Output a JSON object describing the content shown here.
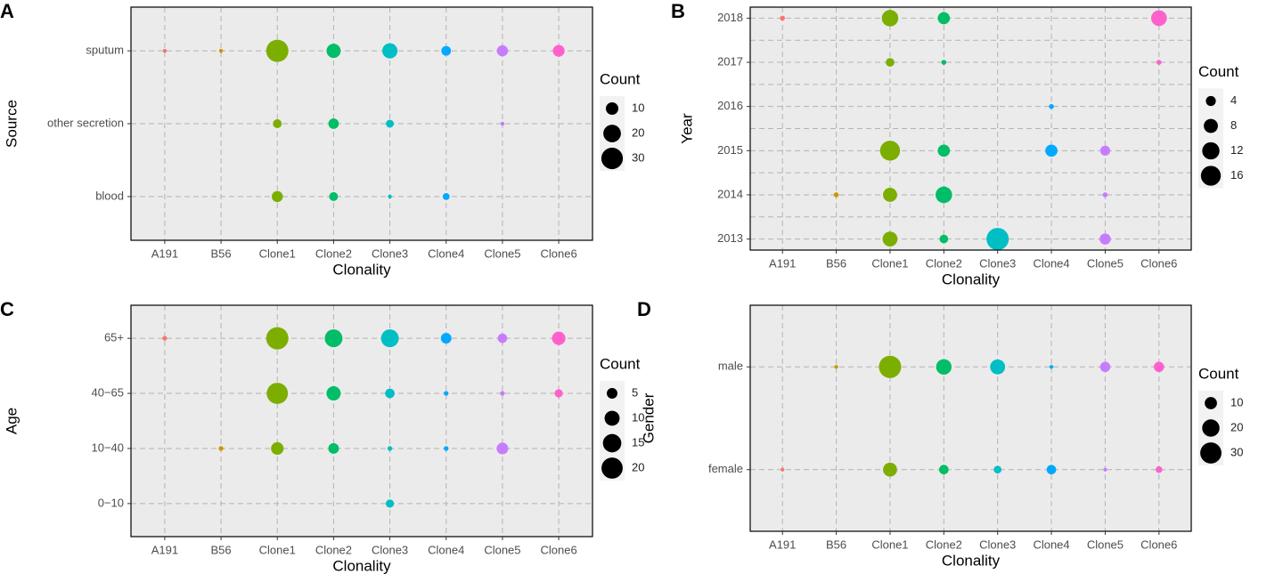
{
  "chart_data": [
    {
      "type": "bubble",
      "panel": "A",
      "x_label": "Clonality",
      "y_label": "Source",
      "categories": [
        "A191",
        "B56",
        "Clone1",
        "Clone2",
        "Clone3",
        "Clone4",
        "Clone5",
        "Clone6"
      ],
      "colors": [
        "#F8766D",
        "#CD9600",
        "#7CAE00",
        "#00BE67",
        "#00BFC4",
        "#00A9FF",
        "#C77CFF",
        "#FF61CC"
      ],
      "y_categories": [
        "blood",
        "other secretion",
        "sputum"
      ],
      "values": [
        [
          null,
          null,
          8,
          5,
          1,
          3,
          null,
          null
        ],
        [
          null,
          null,
          5,
          7,
          4,
          null,
          1,
          null
        ],
        [
          1,
          1,
          32,
          13,
          15,
          6,
          8,
          9
        ]
      ],
      "legend_title": "Count",
      "legend_values": [
        10,
        20,
        30
      ],
      "grid": true
    },
    {
      "type": "bubble",
      "panel": "B",
      "x_label": "Clonality",
      "y_label": "Year",
      "categories": [
        "A191",
        "B56",
        "Clone1",
        "Clone2",
        "Clone3",
        "Clone4",
        "Clone5",
        "Clone6"
      ],
      "colors": [
        "#F8766D",
        "#CD9600",
        "#7CAE00",
        "#00BE67",
        "#00BFC4",
        "#00A9FF",
        "#C77CFF",
        "#FF61CC"
      ],
      "ylim": [
        2012.75,
        2018.25
      ],
      "yticks": [
        2013,
        2014,
        2015,
        2016,
        2017,
        2018
      ],
      "yticks_minor": [
        2013.5,
        2014.5,
        2015.5,
        2016.5,
        2017.5
      ],
      "values": [
        [
          null,
          null,
          9,
          3,
          20,
          null,
          5,
          null
        ],
        [
          null,
          1,
          8,
          11,
          null,
          null,
          1,
          null
        ],
        [
          null,
          null,
          16,
          6,
          null,
          6,
          4,
          null
        ],
        [
          null,
          null,
          null,
          null,
          null,
          1,
          null,
          null
        ],
        [
          null,
          null,
          3,
          1,
          null,
          null,
          null,
          1
        ],
        [
          1,
          null,
          11,
          6,
          null,
          null,
          null,
          10
        ]
      ],
      "legend_title": "Count",
      "legend_values": [
        4,
        8,
        12,
        16
      ],
      "grid": true
    },
    {
      "type": "bubble",
      "panel": "C",
      "x_label": "Clonality",
      "y_label": "Age",
      "categories": [
        "A191",
        "B56",
        "Clone1",
        "Clone2",
        "Clone3",
        "Clone4",
        "Clone5",
        "Clone6"
      ],
      "colors": [
        "#F8766D",
        "#CD9600",
        "#7CAE00",
        "#00BE67",
        "#00BFC4",
        "#00A9FF",
        "#C77CFF",
        "#FF61CC"
      ],
      "y_categories": [
        "0−10",
        "10−40",
        "40−65",
        "65+"
      ],
      "values": [
        [
          null,
          null,
          null,
          null,
          3,
          null,
          null,
          null
        ],
        [
          null,
          1,
          7,
          5,
          1,
          1,
          6,
          null
        ],
        [
          null,
          null,
          20,
          9,
          4,
          1,
          1,
          3
        ],
        [
          1,
          null,
          22,
          14,
          14,
          5,
          4,
          8
        ]
      ],
      "legend_title": "Count",
      "legend_values": [
        5,
        10,
        15,
        20
      ],
      "grid": true
    },
    {
      "type": "bubble",
      "panel": "D",
      "x_label": "Clonality",
      "y_label": "Gender",
      "categories": [
        "A191",
        "B56",
        "Clone1",
        "Clone2",
        "Clone3",
        "Clone4",
        "Clone5",
        "Clone6"
      ],
      "colors": [
        "#F8766D",
        "#CD9600",
        "#7CAE00",
        "#00BE67",
        "#00BFC4",
        "#00A9FF",
        "#C77CFF",
        "#FF61CC"
      ],
      "y_categories": [
        "female",
        "male"
      ],
      "values": [
        [
          1,
          null,
          13,
          6,
          4,
          6,
          1,
          3
        ],
        [
          null,
          1,
          33,
          16,
          15,
          1,
          7,
          7
        ]
      ],
      "legend_title": "Count",
      "legend_values": [
        10,
        20,
        30
      ],
      "grid": true
    }
  ]
}
